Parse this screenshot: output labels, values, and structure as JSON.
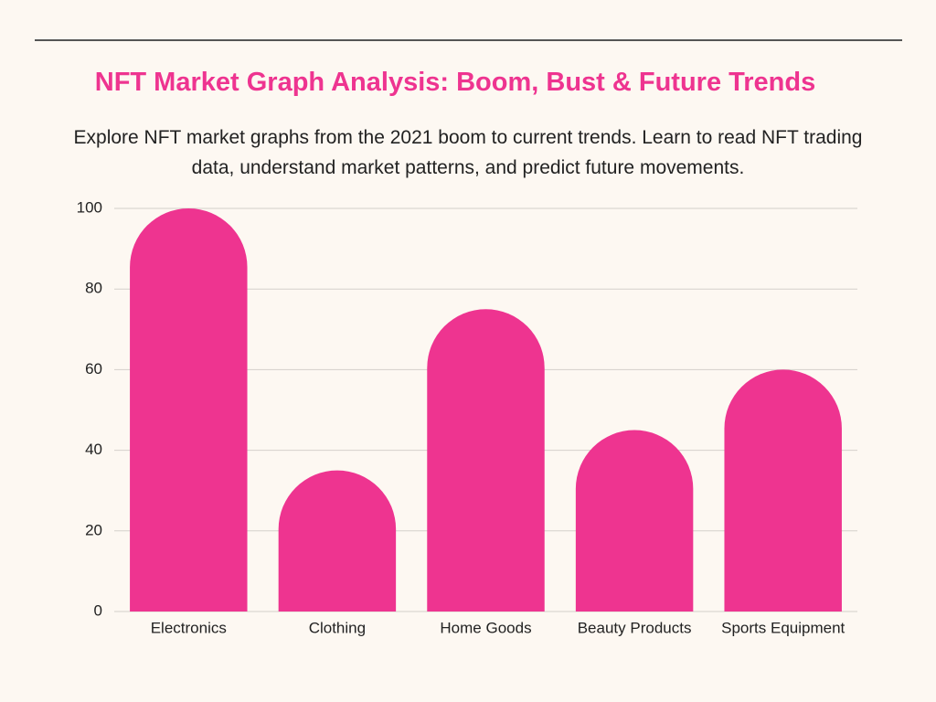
{
  "chart_data": {
    "type": "bar",
    "title": "NFT Market Graph Analysis: Boom, Bust & Future Trends",
    "subtitle": "Explore NFT market graphs from the 2021 boom to current trends. Learn to read NFT trading data, understand market patterns, and predict future movements.",
    "categories": [
      "Electronics",
      "Clothing",
      "Home Goods",
      "Beauty Products",
      "Sports Equipment"
    ],
    "values": [
      100,
      35,
      75,
      45,
      60
    ],
    "color": "#ee3490",
    "ylim": [
      0,
      100
    ],
    "yticks": [
      0,
      20,
      40,
      60,
      80,
      100
    ],
    "grid": true
  }
}
